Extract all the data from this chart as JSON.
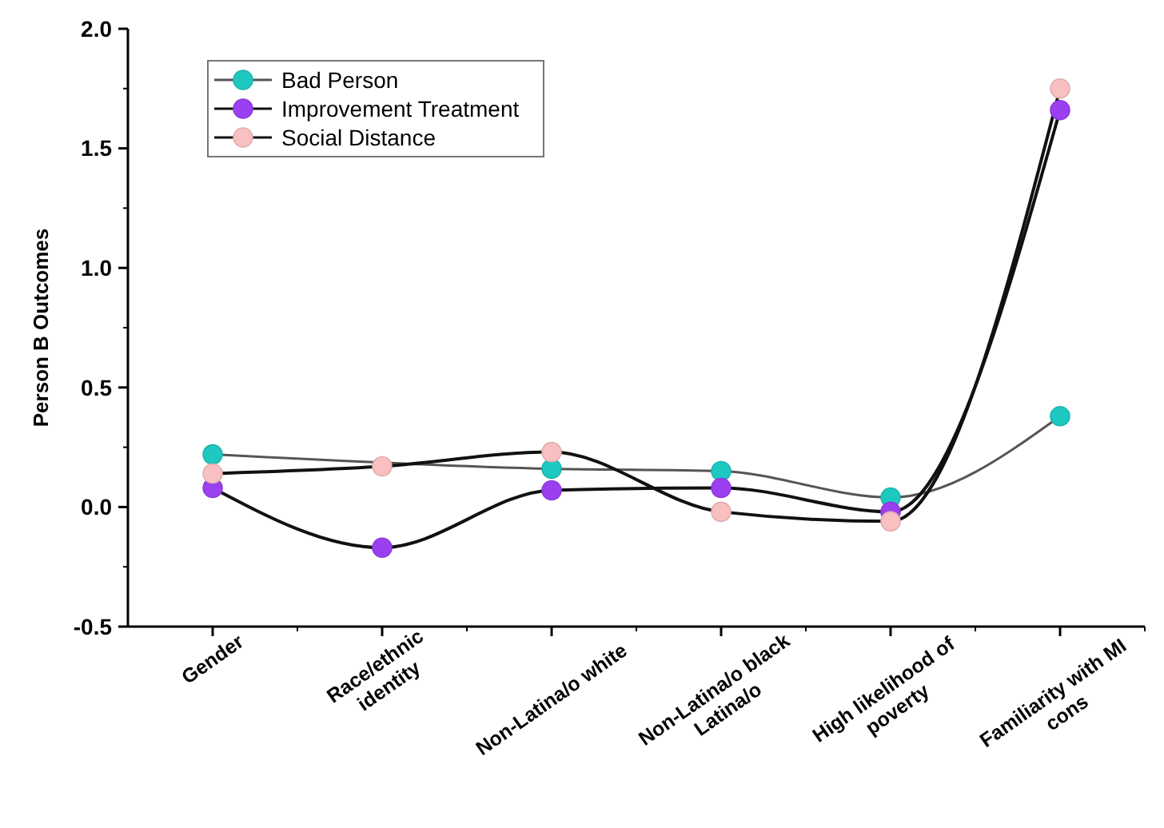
{
  "chart_data": {
    "type": "line",
    "ylabel": "Person  B Outcomes",
    "categories": [
      "Gender",
      "Race/ethnic identity",
      "Non-Latina/o white",
      "Non-Latina/o black Latina/o",
      "High likelihood of poverty",
      "Familiarity with MI cons"
    ],
    "series": [
      {
        "name": "Bad Person",
        "color": "#1ec8c0",
        "values": [
          0.22,
          null,
          0.16,
          0.15,
          0.04,
          0.38
        ]
      },
      {
        "name": "Improvement Treatment",
        "color": "#9b40f0",
        "values": [
          0.08,
          -0.17,
          0.07,
          0.08,
          -0.02,
          1.66
        ]
      },
      {
        "name": "Social Distance",
        "color": "#f8c0c0",
        "values": [
          0.14,
          0.17,
          0.23,
          -0.02,
          -0.06,
          1.75
        ]
      }
    ],
    "ylim": [
      -0.5,
      2.0
    ],
    "yticks": [
      {
        "value": -0.5,
        "label": "-0.5"
      },
      {
        "value": 0,
        "label": "0.0"
      },
      {
        "value": 0.5,
        "label": "0.5"
      },
      {
        "value": 1,
        "label": "1.0"
      },
      {
        "value": 1.5,
        "label": "1.5"
      },
      {
        "value": 2,
        "label": "2.0"
      }
    ],
    "legend": "top left",
    "marker": "circle",
    "line_style": "solid",
    "grid": false
  }
}
